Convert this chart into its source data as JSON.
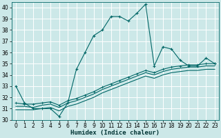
{
  "title": "",
  "xlabel": "Humidex (Indice chaleur)",
  "ylabel": "",
  "background_color": "#cce8e8",
  "grid_color": "#ffffff",
  "line_color": "#006666",
  "x_values": [
    0,
    1,
    2,
    3,
    4,
    5,
    6,
    7,
    8,
    9,
    10,
    11,
    12,
    13,
    14,
    15,
    16,
    17,
    18,
    19,
    20,
    21,
    22,
    23
  ],
  "y_main": [
    33,
    31.5,
    31,
    31,
    31,
    30.3,
    31.5,
    34.5,
    36,
    37.5,
    38,
    39.2,
    39.2,
    38.8,
    39.5,
    40.3,
    34.8,
    36.5,
    36.3,
    35.3,
    34.8,
    34.8,
    35.5,
    35
  ],
  "y_line1": [
    31.5,
    31.4,
    31.4,
    31.5,
    31.6,
    31.3,
    31.7,
    31.9,
    32.2,
    32.5,
    32.9,
    33.2,
    33.5,
    33.8,
    34.1,
    34.4,
    34.2,
    34.5,
    34.7,
    34.8,
    34.9,
    34.9,
    35.0,
    35.0
  ],
  "y_line2": [
    31.2,
    31.2,
    31.1,
    31.3,
    31.4,
    31.1,
    31.5,
    31.7,
    32.0,
    32.3,
    32.7,
    33.0,
    33.3,
    33.6,
    33.9,
    34.2,
    34.0,
    34.3,
    34.5,
    34.6,
    34.7,
    34.7,
    34.8,
    34.8
  ],
  "y_line3": [
    30.9,
    30.9,
    30.9,
    31.0,
    31.1,
    30.8,
    31.2,
    31.4,
    31.7,
    32.0,
    32.4,
    32.7,
    33.0,
    33.3,
    33.6,
    33.9,
    33.7,
    34.0,
    34.2,
    34.3,
    34.4,
    34.4,
    34.5,
    34.5
  ],
  "xlim": [
    -0.5,
    23.5
  ],
  "ylim": [
    30,
    40.5
  ],
  "yticks": [
    30,
    31,
    32,
    33,
    34,
    35,
    36,
    37,
    38,
    39,
    40
  ],
  "xticks": [
    0,
    1,
    2,
    3,
    4,
    5,
    6,
    7,
    8,
    9,
    10,
    11,
    12,
    13,
    14,
    15,
    16,
    17,
    18,
    19,
    20,
    21,
    22,
    23
  ],
  "tick_fontsize": 5.5,
  "xlabel_fontsize": 6.5,
  "linewidth": 0.8,
  "markersize": 3.5
}
